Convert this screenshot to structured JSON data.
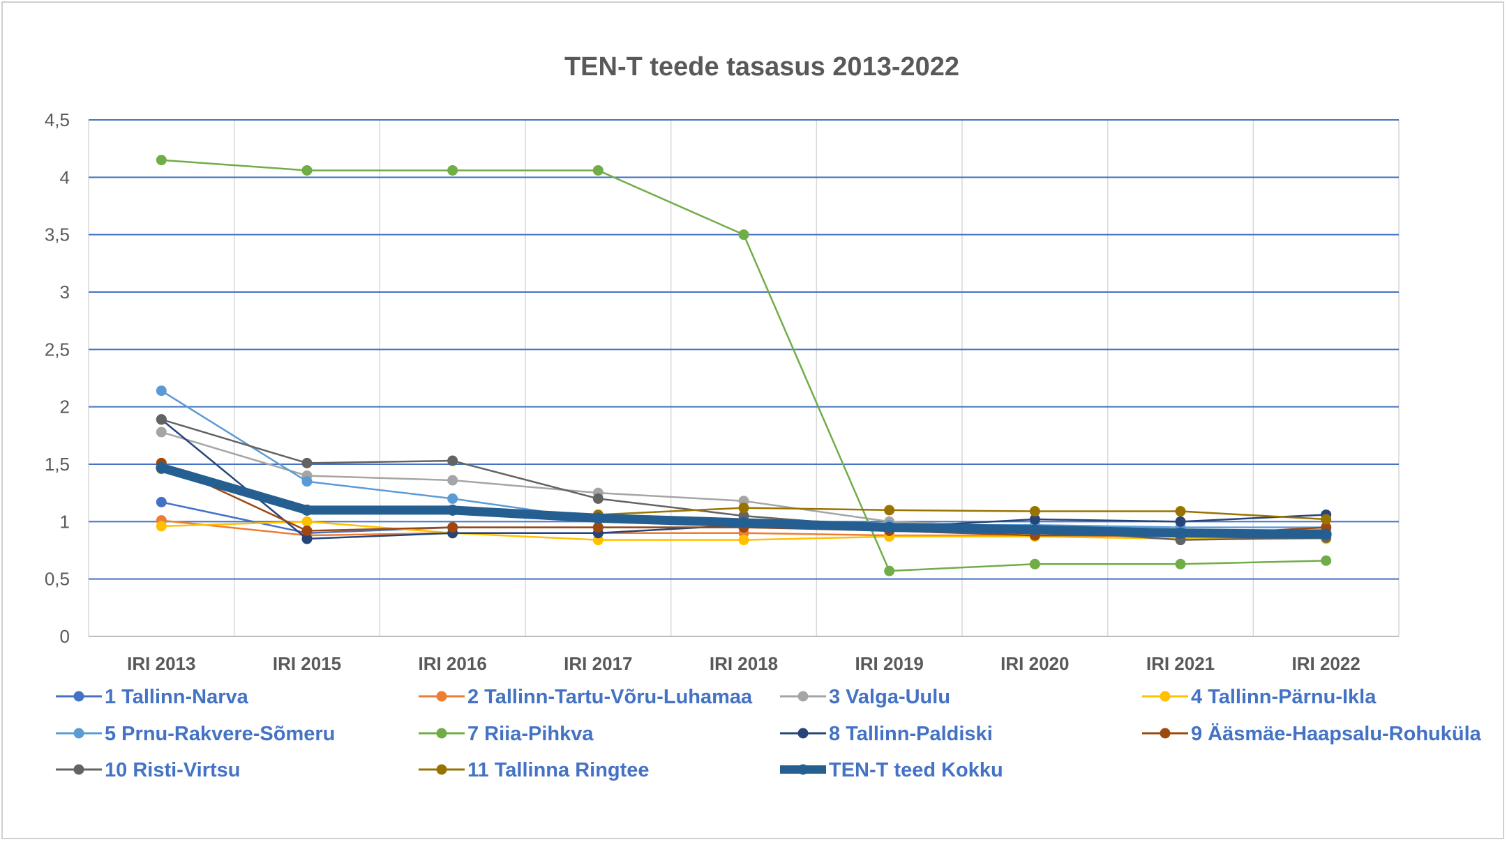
{
  "chart_data": {
    "type": "line",
    "title": "TEN-T teede tasasus 2013-2022",
    "xlabel": "",
    "ylabel": "",
    "categories": [
      "IRI 2013",
      "IRI 2015",
      "IRI 2016",
      "IRI 2017",
      "IRI 2018",
      "IRI 2019",
      "IRI 2020",
      "IRI 2021",
      "IRI 2022"
    ],
    "ylim": [
      0,
      4.5
    ],
    "yticks": [
      "0",
      "0,5",
      "1",
      "1,5",
      "2",
      "2,5",
      "3",
      "3,5",
      "4",
      "4,5"
    ],
    "grid": true,
    "legend_position": "bottom",
    "series": [
      {
        "name": "1 Tallinn-Narva",
        "color": "#4472c4",
        "values": [
          1.17,
          0.9,
          0.95,
          0.95,
          0.95,
          0.93,
          0.9,
          0.88,
          0.9
        ]
      },
      {
        "name": "2 Tallinn-Tartu-Võru-Luhamaa",
        "color": "#ed7d31",
        "values": [
          1.01,
          0.88,
          0.9,
          0.9,
          0.9,
          0.88,
          0.88,
          0.87,
          0.88
        ]
      },
      {
        "name": "3 Valga-Uulu",
        "color": "#a5a5a5",
        "values": [
          1.78,
          1.4,
          1.36,
          1.25,
          1.18,
          1.0,
          0.95,
          0.9,
          0.93
        ]
      },
      {
        "name": "4 Tallinn-Pärnu-Ikla",
        "color": "#ffc000",
        "values": [
          0.96,
          1.0,
          0.9,
          0.84,
          0.84,
          0.87,
          0.87,
          0.85,
          0.85
        ]
      },
      {
        "name": "5 Prnu-Rakvere-Sõmeru",
        "color": "#5b9bd5",
        "values": [
          2.14,
          1.35,
          1.2,
          1.02,
          1.0,
          0.97,
          0.97,
          0.95,
          0.95
        ]
      },
      {
        "name": "7 Riia-Pihkva",
        "color": "#70ad47",
        "values": [
          4.15,
          4.06,
          4.06,
          4.06,
          3.5,
          0.57,
          0.63,
          0.63,
          0.66
        ]
      },
      {
        "name": "8 Tallinn-Paldiski",
        "color": "#264478",
        "values": [
          1.89,
          0.85,
          0.9,
          0.9,
          0.97,
          0.95,
          1.02,
          1.0,
          1.06
        ]
      },
      {
        "name": "9 Ääsmäe-Haapsalu-Rohuküla",
        "color": "#9e480e",
        "values": [
          1.51,
          0.92,
          0.95,
          0.95,
          0.95,
          0.92,
          0.88,
          0.88,
          0.95
        ]
      },
      {
        "name": "10 Risti-Virtsu",
        "color": "#636363",
        "values": [
          1.89,
          1.51,
          1.53,
          1.2,
          1.05,
          0.95,
          0.93,
          0.84,
          0.86
        ]
      },
      {
        "name": "11 Tallinna Ringtee",
        "color": "#997300",
        "values": [
          1.46,
          1.1,
          1.1,
          1.06,
          1.12,
          1.1,
          1.09,
          1.09,
          1.02
        ]
      },
      {
        "name": "TEN-T teed Kokku",
        "color": "#255e91",
        "thick": true,
        "values": [
          1.47,
          1.1,
          1.1,
          1.03,
          0.99,
          0.95,
          0.93,
          0.9,
          0.89
        ]
      }
    ]
  }
}
